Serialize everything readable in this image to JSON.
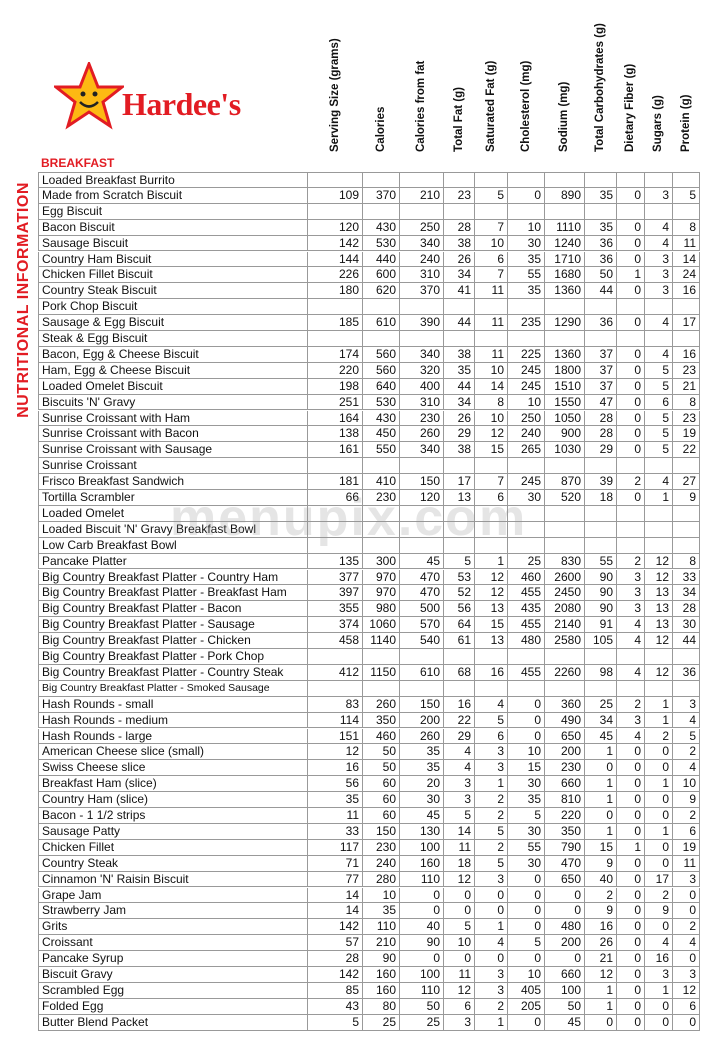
{
  "header": {
    "brand": "Hardee's",
    "side_title": "NUTRITIONAL INFORMATION",
    "watermark": "menupix.com"
  },
  "table": {
    "section": "BREAKFAST",
    "columns": [
      "Serving Size (grams)",
      "Calories",
      "Calories from fat",
      "Total Fat (g)",
      "Saturated Fat (g)",
      "Cholesterol (mg)",
      "Sodium (mg)",
      "Total Carbohydrates (g)",
      "Dietary Fiber (g)",
      "Sugars (g)",
      "Protein (g)"
    ],
    "rows": [
      [
        "Loaded Breakfast Burrito",
        null,
        null,
        null,
        null,
        null,
        null,
        null,
        null,
        null,
        null,
        null
      ],
      [
        "Made from Scratch Biscuit",
        109,
        370,
        210,
        23,
        5,
        0,
        890,
        35,
        0,
        3,
        5
      ],
      [
        "Egg Biscuit",
        null,
        null,
        null,
        null,
        null,
        null,
        null,
        null,
        null,
        null,
        null
      ],
      [
        "Bacon Biscuit",
        120,
        430,
        250,
        28,
        7,
        10,
        1110,
        35,
        0,
        4,
        8
      ],
      [
        "Sausage Biscuit",
        142,
        530,
        340,
        38,
        10,
        30,
        1240,
        36,
        0,
        4,
        11
      ],
      [
        "Country Ham Biscuit",
        144,
        440,
        240,
        26,
        6,
        35,
        1710,
        36,
        0,
        3,
        14
      ],
      [
        "Chicken Fillet Biscuit",
        226,
        600,
        310,
        34,
        7,
        55,
        1680,
        50,
        1,
        3,
        24
      ],
      [
        "Country Steak Biscuit",
        180,
        620,
        370,
        41,
        11,
        35,
        1360,
        44,
        0,
        3,
        16
      ],
      [
        "Pork Chop Biscuit",
        null,
        null,
        null,
        null,
        null,
        null,
        null,
        null,
        null,
        null,
        null
      ],
      [
        "Sausage & Egg Biscuit",
        185,
        610,
        390,
        44,
        11,
        235,
        1290,
        36,
        0,
        4,
        17
      ],
      [
        "Steak & Egg Biscuit",
        null,
        null,
        null,
        null,
        null,
        null,
        null,
        null,
        null,
        null,
        null
      ],
      [
        "Bacon, Egg & Cheese Biscuit",
        174,
        560,
        340,
        38,
        11,
        225,
        1360,
        37,
        0,
        4,
        16
      ],
      [
        "Ham, Egg & Cheese Biscuit",
        220,
        560,
        320,
        35,
        10,
        245,
        1800,
        37,
        0,
        5,
        23
      ],
      [
        "Loaded Omelet Biscuit",
        198,
        640,
        400,
        44,
        14,
        245,
        1510,
        37,
        0,
        5,
        21
      ],
      [
        "Biscuits 'N' Gravy",
        251,
        530,
        310,
        34,
        8,
        10,
        1550,
        47,
        0,
        6,
        8
      ],
      [
        "Sunrise Croissant with Ham",
        164,
        430,
        230,
        26,
        10,
        250,
        1050,
        28,
        0,
        5,
        23
      ],
      [
        "Sunrise Croissant with Bacon",
        138,
        450,
        260,
        29,
        12,
        240,
        900,
        28,
        0,
        5,
        19
      ],
      [
        "Sunrise Croissant with Sausage",
        161,
        550,
        340,
        38,
        15,
        265,
        1030,
        29,
        0,
        5,
        22
      ],
      [
        "Sunrise Croissant",
        null,
        null,
        null,
        null,
        null,
        null,
        null,
        null,
        null,
        null,
        null
      ],
      [
        "Frisco Breakfast Sandwich",
        181,
        410,
        150,
        17,
        7,
        245,
        870,
        39,
        2,
        4,
        27
      ],
      [
        "Tortilla Scrambler",
        66,
        230,
        120,
        13,
        6,
        30,
        520,
        18,
        0,
        1,
        9
      ],
      [
        "Loaded Omelet",
        null,
        null,
        null,
        null,
        null,
        null,
        null,
        null,
        null,
        null,
        null
      ],
      [
        "Loaded Biscuit 'N' Gravy Breakfast Bowl",
        null,
        null,
        null,
        null,
        null,
        null,
        null,
        null,
        null,
        null,
        null
      ],
      [
        "Low Carb Breakfast Bowl",
        null,
        null,
        null,
        null,
        null,
        null,
        null,
        null,
        null,
        null,
        null
      ],
      [
        "Pancake Platter",
        135,
        300,
        45,
        5,
        1,
        25,
        830,
        55,
        2,
        12,
        8
      ],
      [
        "Big Country Breakfast Platter - Country Ham",
        377,
        970,
        470,
        53,
        12,
        460,
        2600,
        90,
        3,
        12,
        33
      ],
      [
        "Big Country Breakfast Platter - Breakfast Ham",
        397,
        970,
        470,
        52,
        12,
        455,
        2450,
        90,
        3,
        13,
        34
      ],
      [
        "Big Country Breakfast Platter - Bacon",
        355,
        980,
        500,
        56,
        13,
        435,
        2080,
        90,
        3,
        13,
        28
      ],
      [
        "Big Country Breakfast Platter - Sausage",
        374,
        1060,
        570,
        64,
        15,
        455,
        2140,
        91,
        4,
        13,
        30
      ],
      [
        "Big Country Breakfast Platter - Chicken",
        458,
        1140,
        540,
        61,
        13,
        480,
        2580,
        105,
        4,
        12,
        44
      ],
      [
        "Big Country Breakfast Platter - Pork Chop",
        null,
        null,
        null,
        null,
        null,
        null,
        null,
        null,
        null,
        null,
        null
      ],
      [
        "Big Country Breakfast Platter - Country Steak",
        412,
        1150,
        610,
        68,
        16,
        455,
        2260,
        98,
        4,
        12,
        36
      ],
      [
        "Big Country Breakfast Platter - Smoked Sausage",
        null,
        null,
        null,
        null,
        null,
        null,
        null,
        null,
        null,
        null,
        null
      ],
      [
        "Hash Rounds - small",
        83,
        260,
        150,
        16,
        4,
        0,
        360,
        25,
        2,
        1,
        3
      ],
      [
        "Hash Rounds - medium",
        114,
        350,
        200,
        22,
        5,
        0,
        490,
        34,
        3,
        1,
        4
      ],
      [
        "Hash Rounds - large",
        151,
        460,
        260,
        29,
        6,
        0,
        650,
        45,
        4,
        2,
        5
      ],
      [
        "American Cheese slice (small)",
        12,
        50,
        35,
        4,
        3,
        10,
        200,
        1,
        0,
        0,
        2
      ],
      [
        "Swiss Cheese slice",
        16,
        50,
        35,
        4,
        3,
        15,
        230,
        0,
        0,
        0,
        4
      ],
      [
        "Breakfast Ham (slice)",
        56,
        60,
        20,
        3,
        1,
        30,
        660,
        1,
        0,
        1,
        10
      ],
      [
        "Country Ham (slice)",
        35,
        60,
        30,
        3,
        2,
        35,
        810,
        1,
        0,
        0,
        9
      ],
      [
        "Bacon - 1 1/2 strips",
        11,
        60,
        45,
        5,
        2,
        5,
        220,
        0,
        0,
        0,
        2
      ],
      [
        "Sausage Patty",
        33,
        150,
        130,
        14,
        5,
        30,
        350,
        1,
        0,
        1,
        6
      ],
      [
        "Chicken Fillet",
        117,
        230,
        100,
        11,
        2,
        55,
        790,
        15,
        1,
        0,
        19
      ],
      [
        "Country Steak",
        71,
        240,
        160,
        18,
        5,
        30,
        470,
        9,
        0,
        0,
        11
      ],
      [
        "Cinnamon 'N' Raisin Biscuit",
        77,
        280,
        110,
        12,
        3,
        0,
        650,
        40,
        0,
        17,
        3
      ],
      [
        "Grape Jam",
        14,
        10,
        0,
        0,
        0,
        0,
        0,
        2,
        0,
        2,
        0
      ],
      [
        "Strawberry Jam",
        14,
        35,
        0,
        0,
        0,
        0,
        0,
        9,
        0,
        9,
        0
      ],
      [
        "Grits",
        142,
        110,
        40,
        5,
        1,
        0,
        480,
        16,
        0,
        0,
        2
      ],
      [
        "Croissant",
        57,
        210,
        90,
        10,
        4,
        5,
        200,
        26,
        0,
        4,
        4
      ],
      [
        "Pancake Syrup",
        28,
        90,
        0,
        0,
        0,
        0,
        0,
        21,
        0,
        16,
        0
      ],
      [
        "Biscuit Gravy",
        142,
        160,
        100,
        11,
        3,
        10,
        660,
        12,
        0,
        3,
        3
      ],
      [
        "Scrambled Egg",
        85,
        160,
        110,
        12,
        3,
        405,
        100,
        1,
        0,
        1,
        12
      ],
      [
        "Folded Egg",
        43,
        80,
        50,
        6,
        2,
        205,
        50,
        1,
        0,
        0,
        6
      ],
      [
        "Butter Blend Packet",
        5,
        25,
        25,
        3,
        1,
        0,
        45,
        0,
        0,
        0,
        0
      ]
    ]
  }
}
